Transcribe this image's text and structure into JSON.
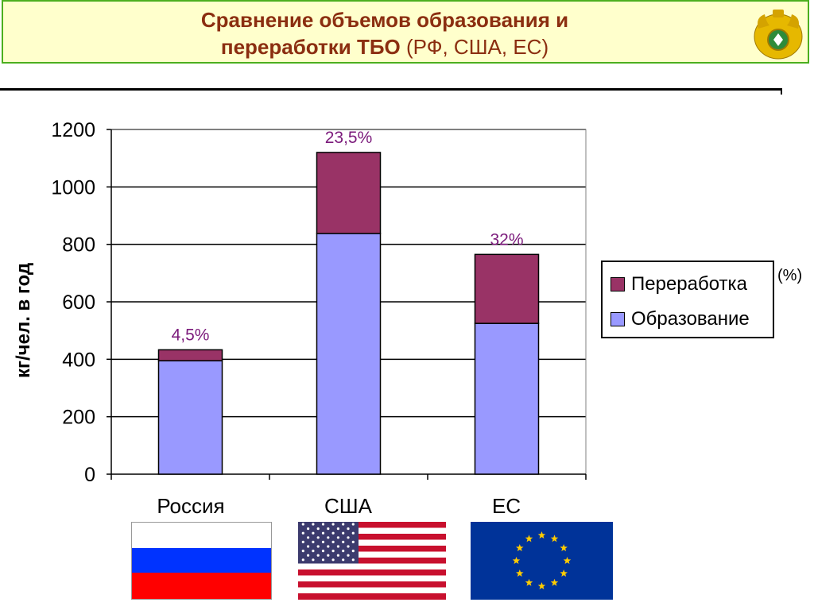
{
  "header": {
    "title_line1": "Сравнение объемов образования и",
    "title_line2_bold": "переработки ТБО",
    "title_line2_normal": " (РФ, США, ЕС)"
  },
  "legend": {
    "items": [
      "Переработка",
      "Образование"
    ],
    "note": "(%)"
  },
  "countries": [
    "Россия",
    "США",
    "ЕС"
  ],
  "colors": {
    "formation": "#9999ff",
    "recycling": "#993366",
    "annotation": "#7b1a7b",
    "border": "#4caf1f"
  },
  "chart_data": {
    "type": "bar",
    "stacked": true,
    "categories": [
      "Россия",
      "США",
      "ЕС"
    ],
    "series": [
      {
        "name": "Образование",
        "values": [
          395,
          838,
          525
        ]
      },
      {
        "name": "Переработка",
        "values": [
          38,
          282,
          240
        ]
      }
    ],
    "annotations": [
      "4,5%",
      "23,5%",
      "32%"
    ],
    "ylabel": "кг/чел. в год",
    "ylim": [
      0,
      1200
    ],
    "yticks": [
      0,
      200,
      400,
      600,
      800,
      1000,
      1200
    ],
    "grid": true,
    "legend_position": "right"
  }
}
